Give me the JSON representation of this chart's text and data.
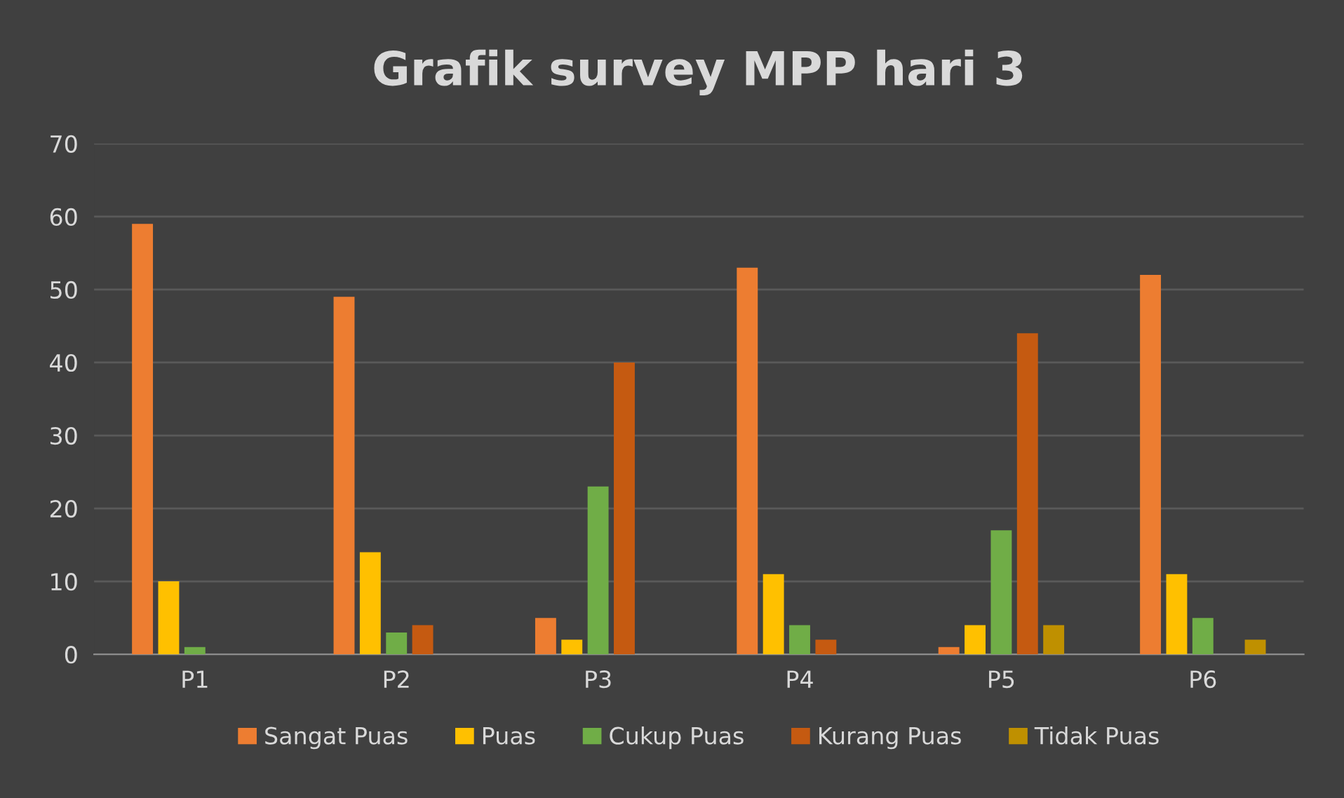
{
  "chart_data": {
    "type": "bar",
    "title": "Grafik survey MPP hari 3",
    "categories": [
      "P1",
      "P2",
      "P3",
      "P4",
      "P5",
      "P6"
    ],
    "series": [
      {
        "name": "Sangat Puas",
        "color": "#ed7d31",
        "values": [
          59,
          49,
          5,
          53,
          1,
          52
        ]
      },
      {
        "name": "Puas",
        "color": "#ffc000",
        "values": [
          10,
          14,
          2,
          11,
          4,
          11
        ]
      },
      {
        "name": "Cukup Puas",
        "color": "#70ad47",
        "values": [
          1,
          3,
          23,
          4,
          17,
          5
        ]
      },
      {
        "name": "Kurang Puas",
        "color": "#c55a11",
        "values": [
          0,
          4,
          40,
          2,
          44,
          0
        ]
      },
      {
        "name": "Tidak Puas",
        "color": "#bf9000",
        "values": [
          0,
          0,
          0,
          0,
          4,
          2
        ]
      }
    ],
    "ylim": [
      0,
      70
    ],
    "yticks": [
      0,
      10,
      20,
      30,
      40,
      50,
      60,
      70
    ],
    "grid": "y",
    "legend": "bottom"
  }
}
